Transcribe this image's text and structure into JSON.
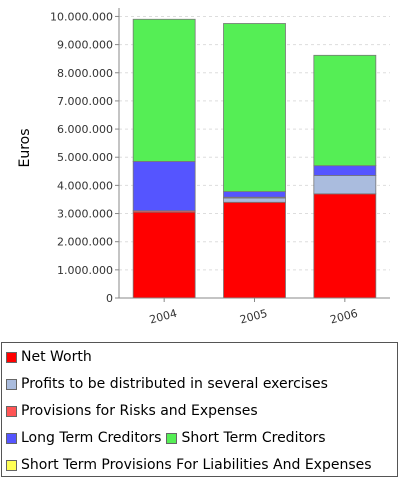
{
  "chart_data": {
    "type": "bar",
    "stacked": true,
    "categories": [
      "2004",
      "2005",
      "2006"
    ],
    "ylabel": "Euros",
    "xlabel": "",
    "ylim": [
      0,
      10300000
    ],
    "yticks": [
      0,
      1000000,
      2000000,
      3000000,
      4000000,
      5000000,
      6000000,
      7000000,
      8000000,
      9000000,
      10000000
    ],
    "ytick_labels": [
      "0",
      "1.000.000",
      "2.000.000",
      "3.000.000",
      "4.000.000",
      "5.000.000",
      "6.000.000",
      "7.000.000",
      "8.000.000",
      "9.000.000",
      "10.000.000"
    ],
    "grid": true,
    "legend_position": "bottom",
    "series": [
      {
        "name": "Net Worth",
        "color": "#ff0000",
        "values": [
          3050000,
          3400000,
          3700000
        ]
      },
      {
        "name": "Profits to be distributed in several exercises",
        "color": "#aabcde",
        "values": [
          0,
          150000,
          650000
        ]
      },
      {
        "name": "Provisions for Risks and Expenses",
        "color": "#ff5555",
        "values": [
          50000,
          30000,
          0
        ]
      },
      {
        "name": "Long Term Creditors",
        "color": "#5555ff",
        "values": [
          1750000,
          200000,
          350000
        ]
      },
      {
        "name": "Short Term Creditors",
        "color": "#55ee55",
        "values": [
          5050000,
          5970000,
          3920000
        ]
      },
      {
        "name": "Short Term Provisions For Liabilities And Expenses",
        "color": "#ffff55",
        "values": [
          0,
          0,
          0
        ]
      }
    ]
  },
  "legend": {
    "items": [
      {
        "label": "Net Worth",
        "color": "#ff0000"
      },
      {
        "label": "Profits to be distributed in several exercises",
        "color": "#aabcde"
      },
      {
        "label": "Provisions for Risks and Expenses",
        "color": "#ff5555"
      },
      {
        "label": "Long Term Creditors",
        "color": "#5555ff"
      },
      {
        "label": "Short Term Creditors",
        "color": "#55ee55"
      },
      {
        "label": "Short Term Provisions For Liabilities And Expenses",
        "color": "#ffff55"
      }
    ]
  }
}
